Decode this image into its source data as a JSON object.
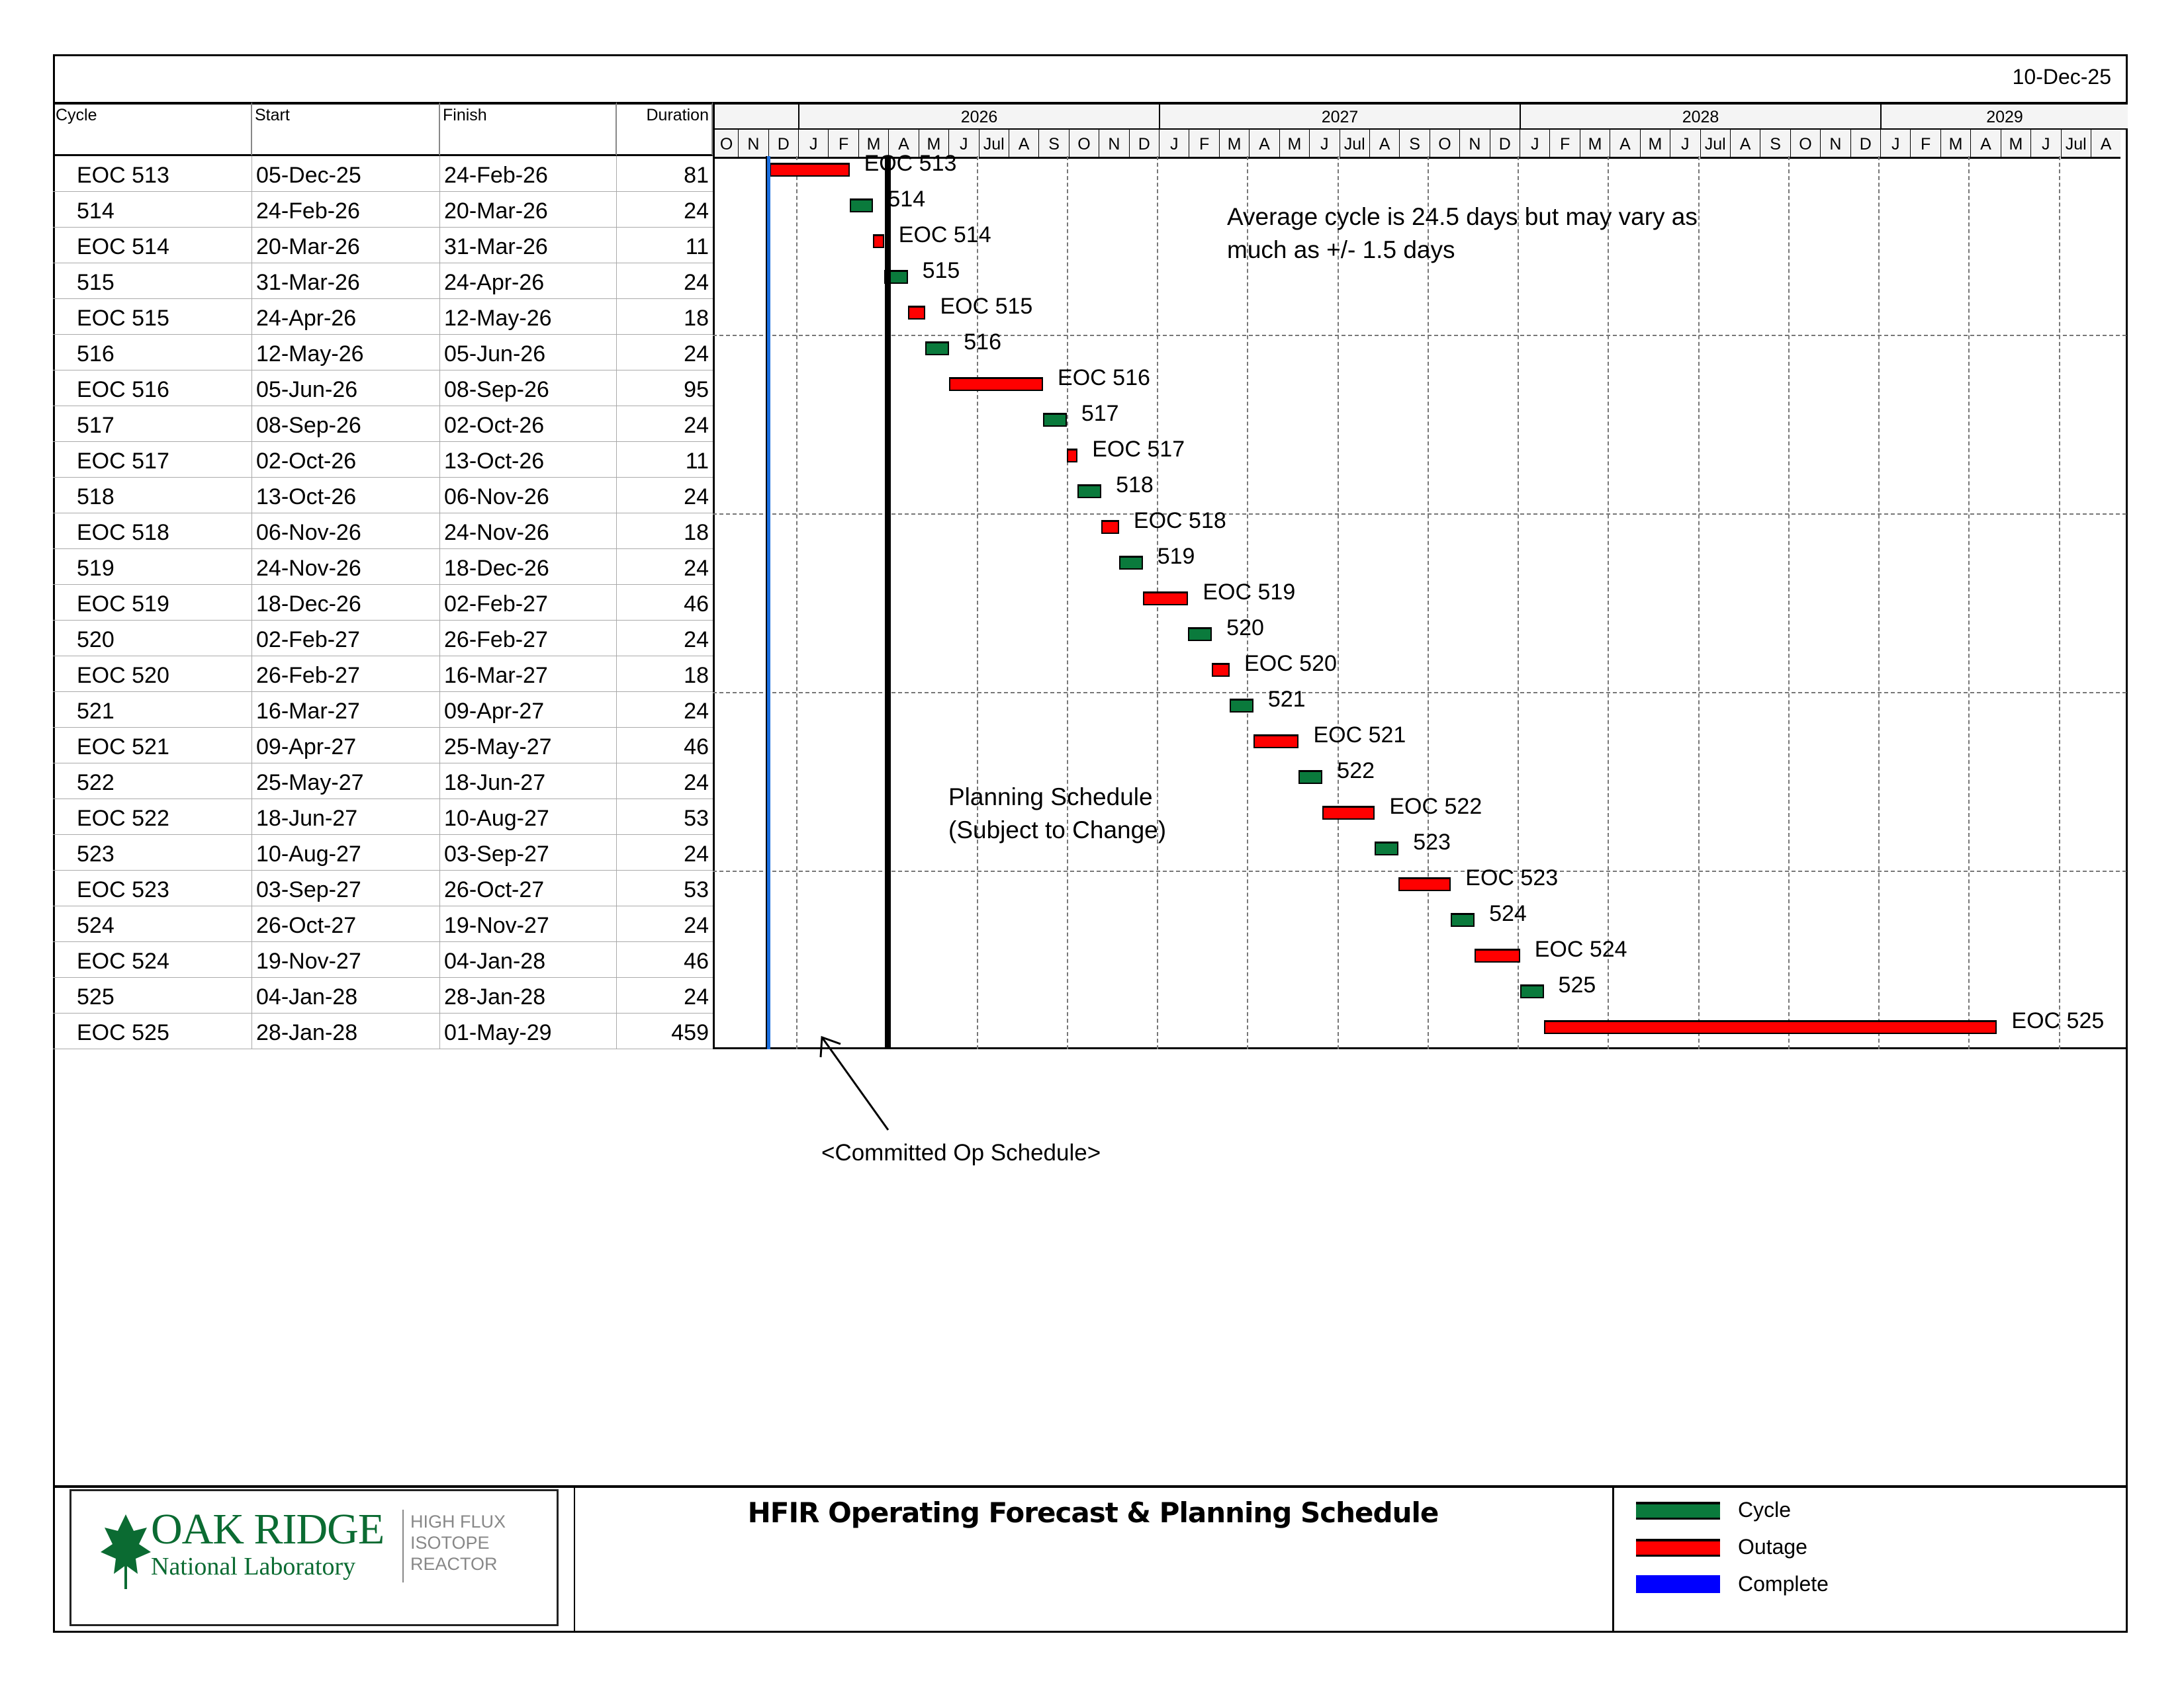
{
  "report_date": "10-Dec-25",
  "headers": {
    "cycle": "Cycle",
    "start": "Start",
    "finish": "Finish",
    "duration": "Duration"
  },
  "timeline": {
    "years": [
      "2026",
      "2027",
      "2028",
      "2029"
    ],
    "months": [
      "O",
      "N",
      "D",
      "J",
      "F",
      "M",
      "A",
      "M",
      "J",
      "Jul",
      "A",
      "S",
      "O",
      "N",
      "D",
      "J",
      "F",
      "M",
      "A",
      "M",
      "J",
      "Jul",
      "A",
      "S",
      "O",
      "N",
      "D",
      "J",
      "F",
      "M",
      "A",
      "M",
      "J",
      "Jul",
      "A",
      "S",
      "O",
      "N",
      "D",
      "J",
      "F",
      "M",
      "A",
      "M",
      "J",
      "Jul",
      "A"
    ]
  },
  "rows": [
    {
      "cycle": "EOC 513",
      "start": "05-Dec-25",
      "finish": "24-Feb-26",
      "duration": "81",
      "type": "outage"
    },
    {
      "cycle": "514",
      "start": "24-Feb-26",
      "finish": "20-Mar-26",
      "duration": "24",
      "type": "cycle"
    },
    {
      "cycle": "EOC 514",
      "start": "20-Mar-26",
      "finish": "31-Mar-26",
      "duration": "11",
      "type": "outage"
    },
    {
      "cycle": "515",
      "start": "31-Mar-26",
      "finish": "24-Apr-26",
      "duration": "24",
      "type": "cycle"
    },
    {
      "cycle": "EOC 515",
      "start": "24-Apr-26",
      "finish": "12-May-26",
      "duration": "18",
      "type": "outage"
    },
    {
      "cycle": "516",
      "start": "12-May-26",
      "finish": "05-Jun-26",
      "duration": "24",
      "type": "cycle"
    },
    {
      "cycle": "EOC 516",
      "start": "05-Jun-26",
      "finish": "08-Sep-26",
      "duration": "95",
      "type": "outage"
    },
    {
      "cycle": "517",
      "start": "08-Sep-26",
      "finish": "02-Oct-26",
      "duration": "24",
      "type": "cycle"
    },
    {
      "cycle": "EOC 517",
      "start": "02-Oct-26",
      "finish": "13-Oct-26",
      "duration": "11",
      "type": "outage"
    },
    {
      "cycle": "518",
      "start": "13-Oct-26",
      "finish": "06-Nov-26",
      "duration": "24",
      "type": "cycle"
    },
    {
      "cycle": "EOC 518",
      "start": "06-Nov-26",
      "finish": "24-Nov-26",
      "duration": "18",
      "type": "outage"
    },
    {
      "cycle": "519",
      "start": "24-Nov-26",
      "finish": "18-Dec-26",
      "duration": "24",
      "type": "cycle"
    },
    {
      "cycle": "EOC 519",
      "start": "18-Dec-26",
      "finish": "02-Feb-27",
      "duration": "46",
      "type": "outage"
    },
    {
      "cycle": "520",
      "start": "02-Feb-27",
      "finish": "26-Feb-27",
      "duration": "24",
      "type": "cycle"
    },
    {
      "cycle": "EOC 520",
      "start": "26-Feb-27",
      "finish": "16-Mar-27",
      "duration": "18",
      "type": "outage"
    },
    {
      "cycle": "521",
      "start": "16-Mar-27",
      "finish": "09-Apr-27",
      "duration": "24",
      "type": "cycle"
    },
    {
      "cycle": "EOC 521",
      "start": "09-Apr-27",
      "finish": "25-May-27",
      "duration": "46",
      "type": "outage"
    },
    {
      "cycle": "522",
      "start": "25-May-27",
      "finish": "18-Jun-27",
      "duration": "24",
      "type": "cycle"
    },
    {
      "cycle": "EOC 522",
      "start": "18-Jun-27",
      "finish": "10-Aug-27",
      "duration": "53",
      "type": "outage"
    },
    {
      "cycle": "523",
      "start": "10-Aug-27",
      "finish": "03-Sep-27",
      "duration": "24",
      "type": "cycle"
    },
    {
      "cycle": "EOC 523",
      "start": "03-Sep-27",
      "finish": "26-Oct-27",
      "duration": "53",
      "type": "outage"
    },
    {
      "cycle": "524",
      "start": "26-Oct-27",
      "finish": "19-Nov-27",
      "duration": "24",
      "type": "cycle"
    },
    {
      "cycle": "EOC 524",
      "start": "19-Nov-27",
      "finish": "04-Jan-28",
      "duration": "46",
      "type": "outage"
    },
    {
      "cycle": "525",
      "start": "04-Jan-28",
      "finish": "28-Jan-28",
      "duration": "24",
      "type": "cycle"
    },
    {
      "cycle": "EOC 525",
      "start": "28-Jan-28",
      "finish": "01-May-29",
      "duration": "459",
      "type": "outage"
    }
  ],
  "bar_labels": [
    "EOC 513",
    "514",
    "EOC 514",
    "515",
    "EOC 515",
    "516",
    "EOC 516",
    "517",
    "EOC 517",
    "518",
    "EOC 518",
    "519",
    "EOC 519",
    "520",
    "EOC 520",
    "521",
    "EOC 521",
    "522",
    "EOC 522",
    "523",
    "EOC 523",
    "524",
    "EOC 524",
    "525",
    "EOC 525"
  ],
  "markers": {
    "complete_date": "10-Dec-25",
    "committed_date": "01-Apr-26"
  },
  "notes": {
    "avg_line1": "Average cycle is 24.5 days but may vary as",
    "avg_line2": "much as +/- 1.5 days",
    "planning_line1": "Planning Schedule",
    "planning_line2": "(Subject to Change)",
    "committed": "<Committed Op Schedule>"
  },
  "footer": {
    "logo_main": "OAK RIDGE",
    "logo_sub": "National Laboratory",
    "logo_side": [
      "HIGH FLUX",
      "ISOTOPE",
      "REACTOR"
    ],
    "title": "HFIR Operating Forecast & Planning Schedule",
    "legend": [
      {
        "label": "Cycle",
        "color": "#0a7a3c"
      },
      {
        "label": "Outage",
        "color": "#ff0000"
      },
      {
        "label": "Complete",
        "color": "#0000ff"
      }
    ]
  },
  "colors": {
    "cycle": "#0a7a3c",
    "outage": "#ff0000",
    "complete": "#1a6fe0",
    "committed": "#000000"
  }
}
